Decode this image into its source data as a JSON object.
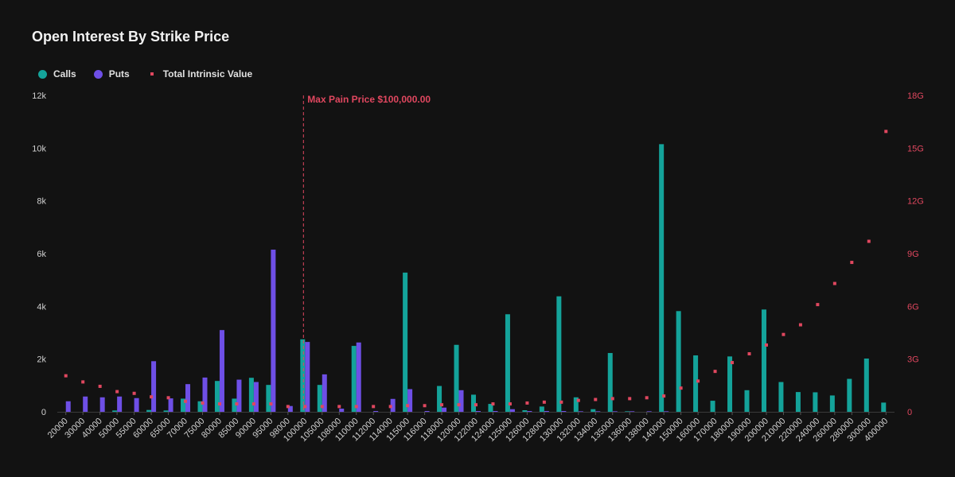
{
  "title": "Open Interest By Strike Price",
  "legend": {
    "calls": "Calls",
    "puts": "Puts",
    "tiv": "Total Intrinsic Value"
  },
  "colors": {
    "calls": "#14a39a",
    "puts": "#6e4fe6",
    "tiv": "#e0475f",
    "text": "#e6e6e6",
    "right_axis": "#e0475f"
  },
  "annotation": {
    "label": "Max Pain Price $100,000.00",
    "strike": "100000"
  },
  "chart_data": {
    "type": "bar",
    "title": "Open Interest By Strike Price",
    "categories": [
      "20000",
      "30000",
      "40000",
      "50000",
      "55000",
      "60000",
      "65000",
      "70000",
      "75000",
      "80000",
      "85000",
      "90000",
      "95000",
      "98000",
      "100000",
      "105000",
      "108000",
      "110000",
      "112000",
      "114000",
      "115000",
      "116000",
      "118000",
      "120000",
      "122000",
      "124000",
      "125000",
      "126000",
      "128000",
      "130000",
      "132000",
      "134000",
      "135000",
      "136000",
      "138000",
      "140000",
      "150000",
      "160000",
      "170000",
      "180000",
      "190000",
      "200000",
      "210000",
      "220000",
      "240000",
      "260000",
      "280000",
      "300000",
      "400000"
    ],
    "series": [
      {
        "name": "Calls",
        "values": [
          0,
          0,
          0,
          50,
          0,
          70,
          50,
          500,
          400,
          1170,
          500,
          1290,
          1020,
          0,
          2750,
          1020,
          0,
          2500,
          0,
          0,
          5280,
          0,
          980,
          2540,
          650,
          300,
          3700,
          60,
          200,
          4380,
          550,
          100,
          2230,
          20,
          0,
          10150,
          3820,
          2140,
          420,
          2100,
          820,
          3880,
          1130,
          750,
          740,
          620,
          1250,
          2020,
          350
        ]
      },
      {
        "name": "Puts",
        "values": [
          400,
          580,
          550,
          580,
          520,
          1920,
          510,
          1050,
          1300,
          3100,
          1220,
          1130,
          6150,
          220,
          2650,
          1420,
          120,
          2630,
          30,
          490,
          860,
          30,
          160,
          820,
          30,
          30,
          100,
          30,
          30,
          30,
          20,
          20,
          20,
          20,
          20,
          20,
          0,
          0,
          0,
          0,
          0,
          0,
          0,
          0,
          0,
          0,
          0,
          0,
          0
        ]
      },
      {
        "name": "Total Intrinsic Value",
        "axis": "right",
        "values": [
          2.05,
          1.7,
          1.45,
          1.15,
          1.05,
          0.85,
          0.8,
          0.6,
          0.5,
          0.45,
          0.45,
          0.45,
          0.45,
          0.3,
          0.3,
          0.3,
          0.3,
          0.3,
          0.3,
          0.3,
          0.35,
          0.35,
          0.4,
          0.4,
          0.4,
          0.45,
          0.45,
          0.5,
          0.55,
          0.55,
          0.65,
          0.7,
          0.75,
          0.75,
          0.8,
          0.9,
          1.35,
          1.75,
          2.3,
          2.8,
          3.3,
          3.8,
          4.4,
          4.95,
          6.1,
          7.3,
          8.5,
          9.7,
          15.95
        ]
      }
    ],
    "ylim": [
      0,
      12000
    ],
    "y_ticks": [
      "0",
      "2k",
      "4k",
      "6k",
      "8k",
      "10k",
      "12k"
    ],
    "y2lim": [
      0,
      18
    ],
    "y2_ticks": [
      "0",
      "3G",
      "6G",
      "9G",
      "12G",
      "15G",
      "18G"
    ]
  }
}
